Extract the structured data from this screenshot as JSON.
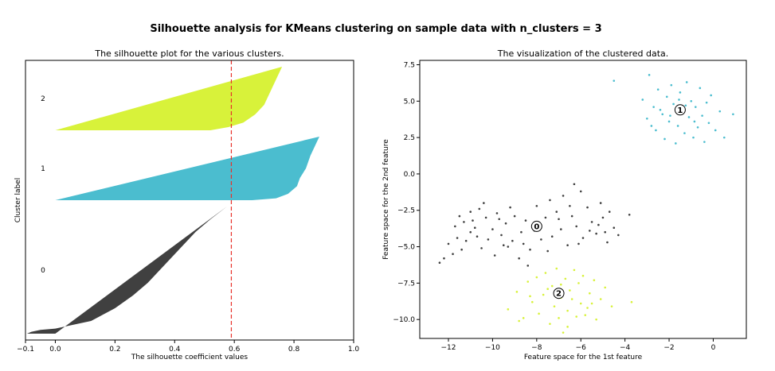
{
  "figure": {
    "suptitle": "Silhouette analysis for KMeans clustering on sample data with n_clusters = 3"
  },
  "colors": {
    "cluster_0": "#404040",
    "cluster_1": "#4bbdcf",
    "cluster_2": "#d8f23a",
    "average_line": "#e8312a",
    "center_fill": "#ffffff",
    "axis": "#000000"
  },
  "chart_data": [
    {
      "type": "area",
      "title": "The silhouette plot for the various clusters.",
      "xlabel": "The silhouette coefficient values",
      "ylabel": "Cluster label",
      "xlim": [
        -0.1,
        1.0
      ],
      "xticks": [
        -0.1,
        0.0,
        0.2,
        0.4,
        0.6,
        0.8,
        1.0
      ],
      "xtick_labels": [
        "−0.1",
        "0.0",
        "0.2",
        "0.4",
        "0.6",
        "0.8",
        "1.0"
      ],
      "ytick_labels": [
        "0",
        "1",
        "2"
      ],
      "average_silhouette": 0.59,
      "grid": false,
      "clusters": [
        {
          "label": "0",
          "size": 200,
          "profile": [
            [
              0.0,
              0.575
            ],
            [
              0.1,
              0.52
            ],
            [
              0.2,
              0.47
            ],
            [
              0.3,
              0.43
            ],
            [
              0.4,
              0.39
            ],
            [
              0.5,
              0.35
            ],
            [
              0.6,
              0.31
            ],
            [
              0.7,
              0.26
            ],
            [
              0.8,
              0.2
            ],
            [
              0.9,
              0.12
            ],
            [
              0.96,
              0.0
            ],
            [
              0.97,
              -0.05
            ],
            [
              0.985,
              -0.08
            ],
            [
              1.0,
              -0.095
            ]
          ]
        },
        {
          "label": "1",
          "size": 100,
          "profile": [
            [
              0.0,
              0.885
            ],
            [
              0.15,
              0.87
            ],
            [
              0.3,
              0.855
            ],
            [
              0.5,
              0.84
            ],
            [
              0.65,
              0.82
            ],
            [
              0.78,
              0.81
            ],
            [
              0.9,
              0.78
            ],
            [
              0.97,
              0.74
            ],
            [
              1.0,
              0.66
            ]
          ]
        },
        {
          "label": "2",
          "size": 100,
          "profile": [
            [
              0.0,
              0.76
            ],
            [
              0.2,
              0.74
            ],
            [
              0.4,
              0.72
            ],
            [
              0.6,
              0.7
            ],
            [
              0.75,
              0.67
            ],
            [
              0.88,
              0.63
            ],
            [
              0.95,
              0.58
            ],
            [
              1.0,
              0.52
            ]
          ]
        }
      ]
    },
    {
      "type": "scatter",
      "title": "The visualization of the clustered data.",
      "xlabel": "Feature space for the 1st feature",
      "ylabel": "Feature space for the 2nd feature",
      "xlim": [
        -13.3,
        1.5
      ],
      "ylim": [
        -11.3,
        7.8
      ],
      "xticks": [
        -12,
        -10,
        -8,
        -6,
        -4,
        -2,
        0
      ],
      "xtick_labels": [
        "−12",
        "−10",
        "−8",
        "−6",
        "−4",
        "−2",
        "0"
      ],
      "yticks": [
        -10.0,
        -7.5,
        -5.0,
        -2.5,
        0.0,
        2.5,
        5.0,
        7.5
      ],
      "ytick_labels": [
        "−10.0",
        "−7.5",
        "−5.0",
        "−2.5",
        "0.0",
        "2.5",
        "5.0",
        "7.5"
      ],
      "grid": false,
      "clusters": [
        {
          "label": "0",
          "points": [
            [
              -12.4,
              -6.1
            ],
            [
              -12.2,
              -5.8
            ],
            [
              -12.0,
              -4.8
            ],
            [
              -11.8,
              -5.5
            ],
            [
              -11.7,
              -3.6
            ],
            [
              -11.6,
              -4.4
            ],
            [
              -11.5,
              -2.9
            ],
            [
              -11.3,
              -3.3
            ],
            [
              -11.2,
              -4.6
            ],
            [
              -11.0,
              -2.6
            ],
            [
              -11.0,
              -4.0
            ],
            [
              -10.8,
              -3.7
            ],
            [
              -10.6,
              -2.4
            ],
            [
              -10.5,
              -5.1
            ],
            [
              -10.3,
              -3.0
            ],
            [
              -10.2,
              -4.5
            ],
            [
              -10.0,
              -3.8
            ],
            [
              -9.9,
              -5.6
            ],
            [
              -9.8,
              -2.7
            ],
            [
              -9.6,
              -4.2
            ],
            [
              -9.4,
              -3.4
            ],
            [
              -9.3,
              -5.0
            ],
            [
              -9.1,
              -4.6
            ],
            [
              -9.0,
              -2.9
            ],
            [
              -8.8,
              -5.8
            ],
            [
              -8.7,
              -4.0
            ],
            [
              -8.5,
              -3.2
            ],
            [
              -8.3,
              -5.2
            ],
            [
              -8.1,
              -3.9
            ],
            [
              -8.0,
              -2.2
            ],
            [
              -7.8,
              -4.5
            ],
            [
              -7.6,
              -3.0
            ],
            [
              -7.4,
              -1.8
            ],
            [
              -7.3,
              -4.3
            ],
            [
              -7.1,
              -2.6
            ],
            [
              -6.9,
              -3.8
            ],
            [
              -6.8,
              -1.5
            ],
            [
              -6.6,
              -4.9
            ],
            [
              -6.4,
              -2.9
            ],
            [
              -6.2,
              -3.6
            ],
            [
              -6.0,
              -1.2
            ],
            [
              -5.9,
              -4.4
            ],
            [
              -5.7,
              -2.3
            ],
            [
              -5.5,
              -3.3
            ],
            [
              -5.3,
              -4.1
            ],
            [
              -5.1,
              -2.0
            ],
            [
              -5.0,
              -3.0
            ],
            [
              -4.8,
              -4.7
            ],
            [
              -4.7,
              -2.6
            ],
            [
              -4.5,
              -3.7
            ],
            [
              -4.3,
              -4.2
            ],
            [
              -3.8,
              -2.8
            ],
            [
              -10.9,
              -3.2
            ],
            [
              -10.4,
              -2.0
            ],
            [
              -9.7,
              -3.1
            ],
            [
              -9.2,
              -2.3
            ],
            [
              -8.6,
              -4.8
            ],
            [
              -7.9,
              -3.4
            ],
            [
              -7.0,
              -3.1
            ],
            [
              -6.5,
              -2.2
            ],
            [
              -6.1,
              -4.8
            ],
            [
              -5.6,
              -3.9
            ],
            [
              -5.2,
              -3.5
            ],
            [
              -4.9,
              -4.0
            ],
            [
              -9.5,
              -4.9
            ],
            [
              -10.7,
              -4.3
            ],
            [
              -11.4,
              -5.2
            ],
            [
              -8.4,
              -6.3
            ],
            [
              -6.3,
              -0.7
            ],
            [
              -7.5,
              -5.3
            ]
          ]
        },
        {
          "label": "1",
          "points": [
            [
              -4.5,
              6.4
            ],
            [
              -3.2,
              5.1
            ],
            [
              -3.0,
              3.8
            ],
            [
              -2.9,
              6.8
            ],
            [
              -2.7,
              4.6
            ],
            [
              -2.6,
              3.0
            ],
            [
              -2.5,
              5.8
            ],
            [
              -2.3,
              4.1
            ],
            [
              -2.2,
              2.4
            ],
            [
              -2.1,
              5.3
            ],
            [
              -2.0,
              3.6
            ],
            [
              -1.9,
              6.1
            ],
            [
              -1.8,
              4.8
            ],
            [
              -1.7,
              2.1
            ],
            [
              -1.6,
              3.3
            ],
            [
              -1.5,
              5.6
            ],
            [
              -1.4,
              4.3
            ],
            [
              -1.3,
              2.8
            ],
            [
              -1.2,
              6.3
            ],
            [
              -1.1,
              3.9
            ],
            [
              -1.0,
              5.0
            ],
            [
              -0.9,
              2.5
            ],
            [
              -0.8,
              4.6
            ],
            [
              -0.7,
              3.2
            ],
            [
              -0.6,
              5.9
            ],
            [
              -0.5,
              4.0
            ],
            [
              -0.4,
              2.2
            ],
            [
              -0.3,
              4.9
            ],
            [
              -0.2,
              3.5
            ],
            [
              -0.1,
              5.4
            ],
            [
              0.1,
              3.0
            ],
            [
              0.3,
              4.3
            ],
            [
              0.5,
              2.5
            ],
            [
              0.9,
              4.1
            ],
            [
              -2.4,
              4.4
            ],
            [
              -1.95,
              4.0
            ],
            [
              -1.25,
              4.7
            ],
            [
              -0.85,
              3.6
            ],
            [
              -2.8,
              3.3
            ],
            [
              -1.55,
              5.1
            ]
          ]
        },
        {
          "label": "2",
          "points": [
            [
              -9.3,
              -9.3
            ],
            [
              -8.9,
              -8.1
            ],
            [
              -8.6,
              -9.9
            ],
            [
              -8.4,
              -7.4
            ],
            [
              -8.2,
              -8.8
            ],
            [
              -8.0,
              -7.1
            ],
            [
              -7.9,
              -9.6
            ],
            [
              -7.7,
              -8.3
            ],
            [
              -7.6,
              -6.8
            ],
            [
              -7.4,
              -10.3
            ],
            [
              -7.3,
              -7.7
            ],
            [
              -7.2,
              -9.1
            ],
            [
              -7.1,
              -6.5
            ],
            [
              -6.9,
              -8.5
            ],
            [
              -6.8,
              -10.9
            ],
            [
              -6.7,
              -7.2
            ],
            [
              -6.6,
              -9.4
            ],
            [
              -6.5,
              -8.0
            ],
            [
              -6.3,
              -6.6
            ],
            [
              -6.2,
              -9.8
            ],
            [
              -6.1,
              -7.5
            ],
            [
              -6.0,
              -8.9
            ],
            [
              -5.9,
              -7.0
            ],
            [
              -5.7,
              -9.2
            ],
            [
              -5.6,
              -8.2
            ],
            [
              -5.4,
              -7.3
            ],
            [
              -5.3,
              -10.0
            ],
            [
              -5.1,
              -8.6
            ],
            [
              -4.9,
              -7.8
            ],
            [
              -4.6,
              -9.1
            ],
            [
              -3.7,
              -8.8
            ],
            [
              -8.8,
              -10.1
            ],
            [
              -7.5,
              -7.9
            ],
            [
              -6.4,
              -8.6
            ],
            [
              -5.8,
              -9.7
            ],
            [
              -7.0,
              -9.9
            ],
            [
              -8.3,
              -8.4
            ],
            [
              -6.9,
              -7.6
            ],
            [
              -5.5,
              -8.9
            ],
            [
              -6.6,
              -10.5
            ]
          ]
        }
      ],
      "centers": [
        {
          "label": "0",
          "x": -8.0,
          "y": -3.6
        },
        {
          "label": "1",
          "x": -1.5,
          "y": 4.4
        },
        {
          "label": "2",
          "x": -7.0,
          "y": -8.2
        }
      ]
    }
  ]
}
